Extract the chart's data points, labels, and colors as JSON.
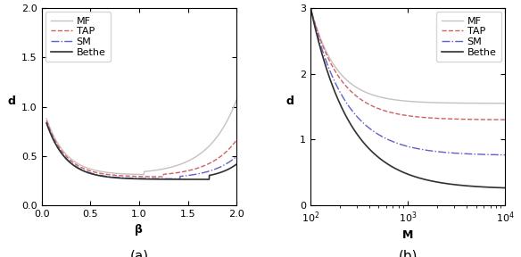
{
  "subplot_a": {
    "title": "(a)",
    "xlabel": "β",
    "ylabel": "d",
    "xlim": [
      0,
      2.0
    ],
    "ylim": [
      0,
      2.0
    ],
    "yticks": [
      0,
      0.5,
      1.0,
      1.5,
      2.0
    ],
    "xticks": [
      0,
      0.5,
      1.0,
      1.5,
      2.0
    ],
    "lines": {
      "MF": {
        "color": "#c8c0c0",
        "linestyle": "-",
        "linewidth": 1.0
      },
      "TAP": {
        "color": "#d06060",
        "linestyle": "--",
        "linewidth": 1.0
      },
      "SM": {
        "color": "#6060c8",
        "linestyle": "-.",
        "linewidth": 1.0
      },
      "Bethe": {
        "color": "#303030",
        "linestyle": "-",
        "linewidth": 1.2
      }
    }
  },
  "subplot_b": {
    "title": "(b)",
    "xlabel": "M",
    "ylabel": "d",
    "xlim_log": [
      2,
      4
    ],
    "ylim": [
      0,
      3.0
    ],
    "yticks": [
      0,
      1.0,
      2.0,
      3.0
    ],
    "xticks_log": [
      100,
      1000,
      10000
    ],
    "lines": {
      "MF": {
        "color": "#c8c0c0",
        "linestyle": "-",
        "linewidth": 1.0
      },
      "TAP": {
        "color": "#d06060",
        "linestyle": "--",
        "linewidth": 1.0
      },
      "SM": {
        "color": "#6060c8",
        "linestyle": "-.",
        "linewidth": 1.0
      },
      "Bethe": {
        "color": "#303030",
        "linestyle": "-",
        "linewidth": 1.2
      }
    }
  },
  "figure_facecolor": "#ffffff",
  "fontsize_label": 9,
  "fontsize_tick": 8,
  "fontsize_title": 11,
  "fontsize_legend": 8
}
